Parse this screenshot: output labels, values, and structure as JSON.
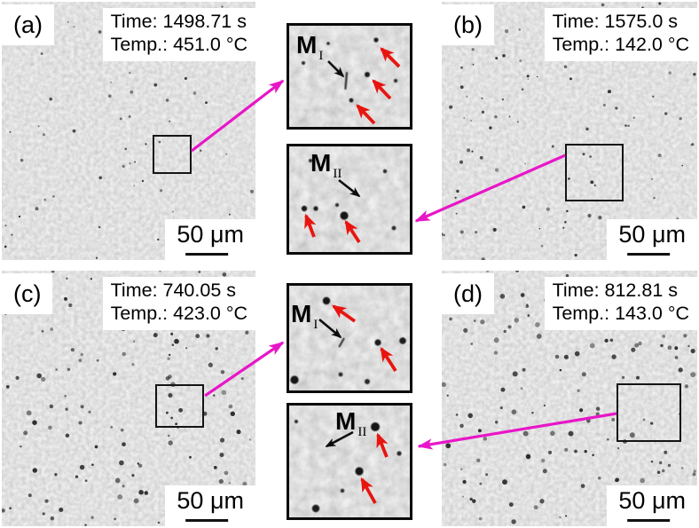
{
  "figure": {
    "panels": [
      {
        "label": "(a)",
        "time": "Time: 1498.71 s",
        "temp": "Temp.: 451.0 °C",
        "scale_bar": "50 μm"
      },
      {
        "label": "(b)",
        "time": "Time: 1575.0 s",
        "temp": "Temp.: 142.0 °C",
        "scale_bar": "50 μm"
      },
      {
        "label": "(c)",
        "time": "Time: 740.05 s",
        "temp": "Temp.: 423.0 °C",
        "scale_bar": "50 μm"
      },
      {
        "label": "(d)",
        "time": "Time: 812.81 s",
        "temp": "Temp.: 143.0 °C",
        "scale_bar": "50 μm"
      }
    ],
    "insets": [
      {
        "marker": "M",
        "subscript": "I"
      },
      {
        "marker": "M",
        "subscript": "II"
      },
      {
        "marker": "M",
        "subscript": "I"
      },
      {
        "marker": "M",
        "subscript": "II"
      }
    ],
    "colors": {
      "connector_arrow": "#e816c8",
      "feature_arrow": "#e8150f",
      "annotation_arrow": "#0d0d0d"
    }
  }
}
